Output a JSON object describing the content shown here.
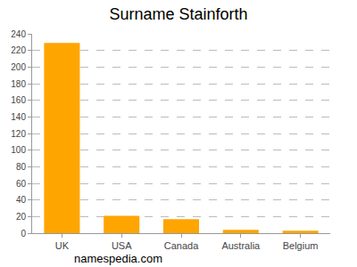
{
  "chart_data": {
    "type": "bar",
    "title": "Surname Stainforth",
    "categories": [
      "UK",
      "USA",
      "Canada",
      "Australia",
      "Belgium"
    ],
    "values": [
      229,
      21,
      17,
      4,
      3
    ],
    "color": "#ffa500",
    "ylim": [
      0,
      240
    ],
    "yticks": [
      0,
      20,
      40,
      60,
      80,
      100,
      120,
      140,
      160,
      180,
      200,
      220,
      240
    ],
    "grid": true,
    "annotations": [
      "namespedia.com"
    ]
  }
}
